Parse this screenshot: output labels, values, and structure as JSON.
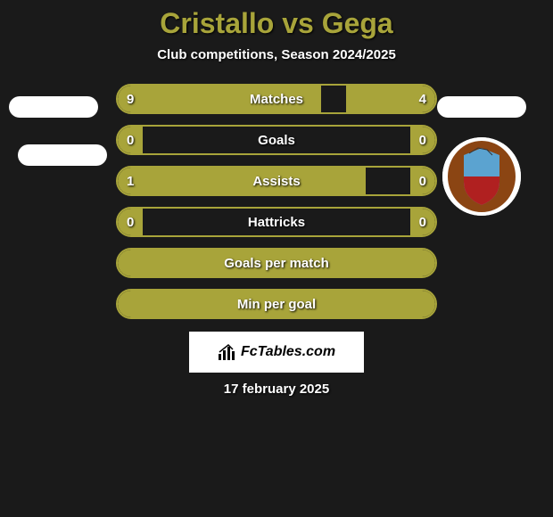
{
  "title": "Cristallo vs Gega",
  "subtitle": "Club competitions, Season 2024/2025",
  "accent_color": "#a8a43a",
  "background_color": "#1a1a1a",
  "pill_color": "#ffffff",
  "stats": [
    {
      "label": "Matches",
      "left_val": "9",
      "right_val": "4",
      "left_pct": 64,
      "right_pct": 28
    },
    {
      "label": "Goals",
      "left_val": "0",
      "right_val": "0",
      "left_pct": 8,
      "right_pct": 8
    },
    {
      "label": "Assists",
      "left_val": "1",
      "right_val": "0",
      "left_pct": 78,
      "right_pct": 8
    },
    {
      "label": "Hattricks",
      "left_val": "0",
      "right_val": "0",
      "left_pct": 8,
      "right_pct": 8
    }
  ],
  "full_rows": [
    {
      "label": "Goals per match"
    },
    {
      "label": "Min per goal"
    }
  ],
  "brand": "FcTables.com",
  "date": "17 february 2025",
  "badge": {
    "outer_color": "#8b4513",
    "shield_top": "#5ba3d0",
    "shield_bottom": "#b02020"
  }
}
